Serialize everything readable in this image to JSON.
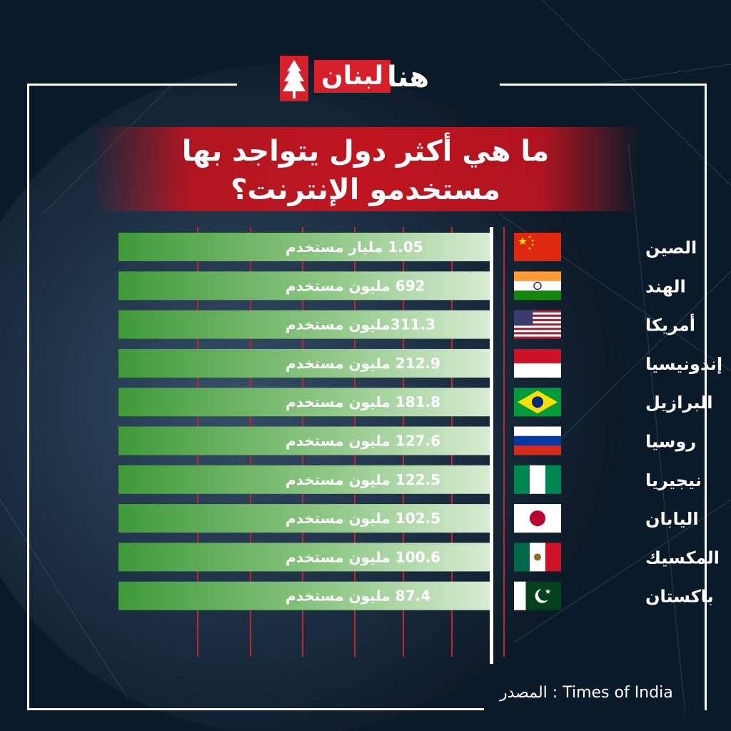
{
  "brand": {
    "name_part1": "لبنان",
    "name_part2": "هنا"
  },
  "title": {
    "line1": "ما هي أكثر دول يتواجد بها",
    "line2": "مستخدمو الإنترنت؟"
  },
  "source": "المصدر : Times of India",
  "colors": {
    "accent": "#d5202b",
    "bar_dark": "#3f9a38",
    "bar_light": "#d6ecd2",
    "grid": "#c0272d",
    "background": "#0b1a28"
  },
  "chart_data": {
    "type": "bar",
    "orientation": "horizontal",
    "unit": "million users",
    "grid": true,
    "categories": [
      "الصين",
      "الهند",
      "أمريكا",
      "إندونيسيا",
      "البرازيل",
      "روسيا",
      "نيجيريا",
      "اليابان",
      "المكسيك",
      "باكستان"
    ],
    "values": [
      1050,
      692,
      311.3,
      212.9,
      181.8,
      127.6,
      122.5,
      102.5,
      100.6,
      87.4
    ],
    "data_labels": [
      "1.05 مليار مستخدم",
      "692 مليون مستخدم",
      "311.3مليون مستخدم",
      "212.9 مليون مستخدم",
      "181.8 مليون مستخدم",
      "127.6 مليون مستخدم",
      "122.5 مليون مستخدم",
      "102.5 مليون مستخدم",
      "100.6 مليون مستخدم",
      "87.4 مليون مستخدم"
    ],
    "flags": [
      "china-flag-icon",
      "india-flag-icon",
      "usa-flag-icon",
      "indonesia-flag-icon",
      "brazil-flag-icon",
      "russia-flag-icon",
      "nigeria-flag-icon",
      "japan-flag-icon",
      "mexico-flag-icon",
      "pakistan-flag-icon"
    ]
  }
}
